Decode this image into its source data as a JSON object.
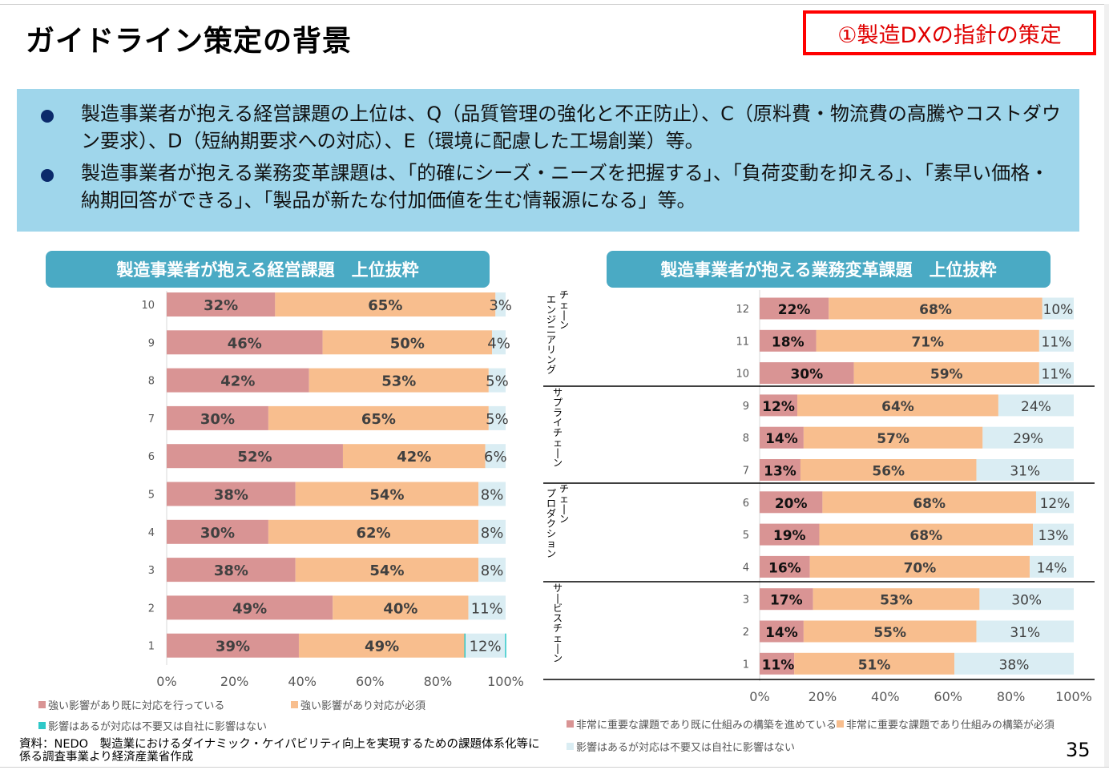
{
  "page": {
    "title": "ガイドライン策定の背景",
    "tag": "①製造DXの指針の策定",
    "page_number": "35",
    "source": "資料：NEDO　製造業におけるダイナミック・ケイパビリティ向上を実現するための課題体系化等に係る調査事業より経済産業省作成"
  },
  "summary": {
    "bullets": [
      "製造事業者が抱える経営課題の上位は、Q（品質管理の強化と不正防止）、C（原料費・物流費の高騰やコストダウン要求）、D（短納期要求への対応）、E（環境に配慮した工場創業）等。",
      "製造事業者が抱える業務変革課題は、「的確にシーズ・ニーズを把握する」、「負荷変動を抑える」、「素早い価格・納期回答ができる」、「製品が新たな付加価値を生む情報源になる」等。"
    ]
  },
  "colors": {
    "series1": "#d99494",
    "series2": "#f8be8e",
    "series3": "#daedf3",
    "series3_left_legend": "#2ec8c8",
    "header_bg": "#4aaac4",
    "summary_bg": "#9fd6eb",
    "tag_red": "#ff0000"
  },
  "chart_data": [
    {
      "type": "bar",
      "orientation": "horizontal",
      "stacked": true,
      "title": "製造事業者が抱える経営課題　上位抜粋",
      "categories": [
        "10",
        "9",
        "8",
        "7",
        "6",
        "5",
        "4",
        "3",
        "2",
        "1"
      ],
      "series": [
        {
          "name": "強い影響があり既に対応を行っている",
          "values": [
            32,
            46,
            42,
            30,
            52,
            38,
            30,
            38,
            49,
            39
          ]
        },
        {
          "name": "強い影響があり対応が必須",
          "values": [
            65,
            50,
            53,
            65,
            42,
            54,
            62,
            54,
            40,
            49
          ]
        },
        {
          "name": "影響はあるが対応は不要又は自社に影響はない",
          "values": [
            3,
            4,
            5,
            5,
            6,
            8,
            8,
            8,
            11,
            12
          ]
        }
      ],
      "xlim": [
        0,
        100
      ],
      "xticks": [
        "0%",
        "20%",
        "40%",
        "60%",
        "80%",
        "100%"
      ],
      "xlabel": "",
      "ylabel": "",
      "legend_position": "bottom",
      "grid": false
    },
    {
      "type": "bar",
      "orientation": "horizontal",
      "stacked": true,
      "title": "製造事業者が抱える業務変革課題　上位抜粋",
      "groups": [
        {
          "label": "エンジニアリングチェーン",
          "label_lines": [
            "エンジニアリング",
            "チェーン"
          ],
          "categories": [
            "12",
            "11",
            "10"
          ]
        },
        {
          "label": "サプライチェーン",
          "label_lines": [
            "サプライチェーン"
          ],
          "categories": [
            "9",
            "8",
            "7"
          ]
        },
        {
          "label": "プロダクションチェーン",
          "label_lines": [
            "プロダクション",
            "チェーン"
          ],
          "categories": [
            "6",
            "5",
            "4"
          ]
        },
        {
          "label": "サービスチェーン",
          "label_lines": [
            "サービスチェーン"
          ],
          "categories": [
            "3",
            "2",
            "1"
          ]
        }
      ],
      "categories": [
        "12",
        "11",
        "10",
        "9",
        "8",
        "7",
        "6",
        "5",
        "4",
        "3",
        "2",
        "1"
      ],
      "series": [
        {
          "name": "非常に重要な課題であり既に仕組みの構築を進めている",
          "values": [
            22,
            18,
            30,
            12,
            14,
            13,
            20,
            19,
            16,
            17,
            14,
            11
          ]
        },
        {
          "name": "非常に重要な課題であり仕組みの構築が必須",
          "values": [
            68,
            71,
            59,
            64,
            57,
            56,
            68,
            68,
            70,
            53,
            55,
            51
          ]
        },
        {
          "name": "影響はあるが対応は不要又は自社に影響はない",
          "values": [
            10,
            11,
            11,
            24,
            29,
            31,
            12,
            13,
            14,
            30,
            31,
            38
          ]
        }
      ],
      "xlim": [
        0,
        100
      ],
      "xticks": [
        "0%",
        "20%",
        "40%",
        "60%",
        "80%",
        "100%"
      ],
      "xlabel": "",
      "ylabel": "",
      "legend_position": "bottom",
      "grid": false
    }
  ]
}
